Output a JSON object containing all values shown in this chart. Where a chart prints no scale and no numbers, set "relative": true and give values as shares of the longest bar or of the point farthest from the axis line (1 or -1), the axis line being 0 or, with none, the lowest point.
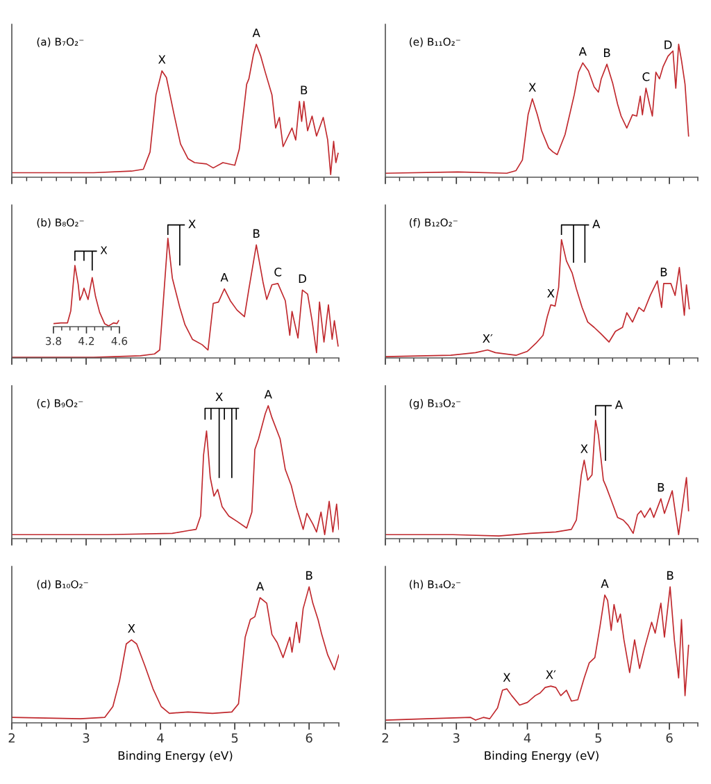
{
  "chart_data": [
    {
      "type": "line",
      "relative": true,
      "title": "(a) B₇O₂⁻",
      "xlim": [
        2,
        6.4
      ],
      "tick_labels": false,
      "xticks": [
        2,
        {
          "value": 2.2,
          "label": null
        },
        {
          "value": 2.4,
          "label": null
        },
        {
          "value": 2.6,
          "label": null
        },
        {
          "value": 2.8,
          "label": null
        },
        3,
        {
          "value": 3.2,
          "label": null
        },
        {
          "value": 3.4,
          "label": null
        },
        {
          "value": 3.6,
          "label": null
        },
        {
          "value": 3.8,
          "label": null
        },
        4,
        {
          "value": 4.2,
          "label": null
        },
        {
          "value": 4.4,
          "label": null
        },
        {
          "value": 4.6,
          "label": null
        },
        {
          "value": 4.8,
          "label": null
        },
        5,
        {
          "value": 5.2,
          "label": null
        },
        {
          "value": 5.4,
          "label": null
        },
        {
          "value": 5.6,
          "label": null
        },
        {
          "value": 5.8,
          "label": null
        },
        6,
        {
          "value": 6.2,
          "label": null
        },
        {
          "value": 6.4,
          "label": null
        }
      ],
      "series": [
        {
          "color": "#c0282d",
          "x": [
            2.0,
            3.1,
            3.61,
            3.77,
            3.86,
            3.94,
            4.02,
            4.08,
            4.18,
            4.27,
            4.37,
            4.46,
            4.62,
            4.71,
            4.84,
            5.0,
            5.06,
            5.16,
            5.19,
            5.25,
            5.29,
            5.35,
            5.41,
            5.5,
            5.55,
            5.6,
            5.65,
            5.77,
            5.82,
            5.87,
            5.9,
            5.93,
            5.98,
            6.04,
            6.1,
            6.19,
            6.25,
            6.29,
            6.33,
            6.36,
            6.39
          ],
          "values": [
            0.034,
            0.034,
            0.046,
            0.06,
            0.19,
            0.62,
            0.8,
            0.75,
            0.48,
            0.25,
            0.14,
            0.11,
            0.1,
            0.07,
            0.11,
            0.09,
            0.21,
            0.7,
            0.74,
            0.92,
            1.0,
            0.91,
            0.79,
            0.62,
            0.37,
            0.45,
            0.23,
            0.37,
            0.28,
            0.57,
            0.42,
            0.57,
            0.35,
            0.46,
            0.31,
            0.45,
            0.28,
            0.02,
            0.27,
            0.11,
            0.18
          ]
        }
      ],
      "annotations": [
        {
          "text": "X",
          "x": 4.02,
          "y": 0.8
        },
        {
          "text": "A",
          "x": 5.29,
          "y": 1.0
        },
        {
          "text": "B",
          "x": 5.93,
          "y": 0.57
        }
      ]
    },
    {
      "type": "line",
      "relative": true,
      "title": "(b) B₈O₂⁻",
      "xlim": [
        2,
        6.4
      ],
      "tick_labels": false,
      "xticks": [
        2,
        {
          "value": 2.2,
          "label": null
        },
        {
          "value": 2.4,
          "label": null
        },
        {
          "value": 2.6,
          "label": null
        },
        {
          "value": 2.8,
          "label": null
        },
        3,
        {
          "value": 3.2,
          "label": null
        },
        {
          "value": 3.4,
          "label": null
        },
        {
          "value": 3.6,
          "label": null
        },
        {
          "value": 3.8,
          "label": null
        },
        4,
        {
          "value": 4.2,
          "label": null
        },
        {
          "value": 4.4,
          "label": null
        },
        {
          "value": 4.6,
          "label": null
        },
        {
          "value": 4.8,
          "label": null
        },
        5,
        {
          "value": 5.2,
          "label": null
        },
        {
          "value": 5.4,
          "label": null
        },
        {
          "value": 5.6,
          "label": null
        },
        {
          "value": 5.8,
          "label": null
        },
        6,
        {
          "value": 6.2,
          "label": null
        },
        {
          "value": 6.4,
          "label": null
        }
      ],
      "series": [
        {
          "color": "#c0282d",
          "x": [
            2.0,
            3.1,
            3.73,
            3.92,
            3.99,
            4.03,
            4.1,
            4.16,
            4.26,
            4.33,
            4.43,
            4.56,
            4.64,
            4.71,
            4.78,
            4.86,
            4.94,
            5.03,
            5.13,
            5.19,
            5.29,
            5.38,
            5.43,
            5.5,
            5.58,
            5.68,
            5.74,
            5.77,
            5.85,
            5.91,
            5.98,
            6.04,
            6.1,
            6.14,
            6.2,
            6.26,
            6.31,
            6.34,
            6.39
          ],
          "values": [
            0.005,
            0.005,
            0.016,
            0.03,
            0.06,
            0.36,
            0.9,
            0.6,
            0.38,
            0.25,
            0.14,
            0.1,
            0.06,
            0.41,
            0.42,
            0.52,
            0.43,
            0.36,
            0.31,
            0.52,
            0.85,
            0.57,
            0.44,
            0.55,
            0.56,
            0.43,
            0.17,
            0.35,
            0.15,
            0.51,
            0.48,
            0.28,
            0.04,
            0.42,
            0.12,
            0.4,
            0.14,
            0.28,
            0.09
          ]
        },
        {
          "color": "#000000",
          "x": [
            4.1,
            4.1,
            4.32,
            null,
            4.26,
            4.26
          ],
          "values": [
            0.93,
            1.0,
            1.0,
            null,
            1.0,
            0.7
          ]
        }
      ],
      "annotations": [
        {
          "text": "X",
          "x": 4.32,
          "y": 1.0
        },
        {
          "text": "A",
          "x": 4.86,
          "y": 0.52
        },
        {
          "text": "B",
          "x": 5.29,
          "y": 0.85
        },
        {
          "text": "C",
          "x": 5.58,
          "y": 0.56
        },
        {
          "text": "D",
          "x": 5.91,
          "y": 0.51
        }
      ]
    },
    {
      "type": "line",
      "relative": true,
      "xlim": [
        3.8,
        4.6
      ],
      "xticks": [
        3.8,
        {
          "value": 3.9,
          "label": null
        },
        {
          "value": 4.0,
          "label": null
        },
        {
          "value": 4.1,
          "label": null
        },
        4.2,
        {
          "value": 4.3,
          "label": null
        },
        {
          "value": 4.4,
          "label": null
        },
        {
          "value": 4.5,
          "label": null
        },
        4.6
      ],
      "series": [
        {
          "color": "#c0282d",
          "x": [
            3.8,
            3.89,
            3.97,
            4.01,
            4.06,
            4.1,
            4.12,
            4.15,
            4.17,
            4.22,
            4.27,
            4.31,
            4.36,
            4.42,
            4.47,
            4.53,
            4.57,
            4.59
          ],
          "values": [
            0.04,
            0.05,
            0.05,
            0.21,
            0.81,
            0.56,
            0.35,
            0.43,
            0.51,
            0.36,
            0.65,
            0.4,
            0.19,
            0.04,
            0.01,
            0.05,
            0.04,
            0.08
          ]
        },
        {
          "color": "#000000",
          "x": [
            4.06,
            4.06,
            4.32,
            null,
            4.17,
            4.17,
            null,
            4.27,
            4.27
          ],
          "values": [
            0.88,
            1.0,
            1.0,
            null,
            0.88,
            1.0,
            null,
            1.0,
            0.75
          ]
        }
      ],
      "annotations": [
        {
          "text": "X",
          "x": 4.32,
          "y": 1.0
        }
      ]
    },
    {
      "type": "line",
      "relative": true,
      "title": "(c) B₉O₂⁻",
      "xlim": [
        2,
        6.4
      ],
      "tick_labels": false,
      "xticks": [
        2,
        {
          "value": 2.2,
          "label": null
        },
        {
          "value": 2.4,
          "label": null
        },
        {
          "value": 2.6,
          "label": null
        },
        {
          "value": 2.8,
          "label": null
        },
        3,
        {
          "value": 3.2,
          "label": null
        },
        {
          "value": 3.4,
          "label": null
        },
        {
          "value": 3.6,
          "label": null
        },
        {
          "value": 3.8,
          "label": null
        },
        4,
        {
          "value": 4.2,
          "label": null
        },
        {
          "value": 4.4,
          "label": null
        },
        {
          "value": 4.6,
          "label": null
        },
        {
          "value": 4.8,
          "label": null
        },
        5,
        {
          "value": 5.2,
          "label": null
        },
        {
          "value": 5.4,
          "label": null
        },
        {
          "value": 5.6,
          "label": null
        },
        {
          "value": 5.8,
          "label": null
        },
        6,
        {
          "value": 6.2,
          "label": null
        },
        {
          "value": 6.4,
          "label": null
        }
      ],
      "series": [
        {
          "color": "#c0282d",
          "x": [
            2.0,
            3.28,
            4.16,
            4.37,
            4.48,
            4.54,
            4.58,
            4.62,
            4.67,
            4.72,
            4.77,
            4.83,
            4.92,
            5.03,
            5.16,
            5.23,
            5.27,
            5.32,
            5.41,
            5.45,
            5.5,
            5.61,
            5.68,
            5.76,
            5.83,
            5.92,
            5.97,
            6.05,
            6.1,
            6.16,
            6.21,
            6.27,
            6.32,
            6.37,
            6.4
          ],
          "values": [
            0.03,
            0.03,
            0.04,
            0.06,
            0.07,
            0.17,
            0.63,
            0.81,
            0.46,
            0.32,
            0.37,
            0.24,
            0.17,
            0.13,
            0.08,
            0.2,
            0.67,
            0.75,
            0.94,
            1.0,
            0.91,
            0.75,
            0.52,
            0.4,
            0.24,
            0.07,
            0.19,
            0.11,
            0.05,
            0.2,
            0.03,
            0.28,
            0.05,
            0.26,
            0.07
          ]
        },
        {
          "color": "#000000",
          "x": [
            4.6,
            4.6,
            5.05,
            null,
            4.68,
            4.68,
            null,
            4.79,
            4.79,
            null,
            4.86,
            4.86,
            null,
            4.96,
            4.96,
            null,
            5.02,
            5.02
          ],
          "values": [
            0.9,
            0.98,
            0.98,
            null,
            0.98,
            0.9,
            null,
            0.98,
            0.46,
            null,
            0.98,
            0.9,
            null,
            0.98,
            0.46,
            null,
            0.98,
            0.9
          ]
        }
      ],
      "annotations": [
        {
          "text": "X",
          "x": 4.79,
          "y": 0.98
        },
        {
          "text": "A",
          "x": 5.45,
          "y": 1.0
        }
      ]
    },
    {
      "type": "line",
      "relative": true,
      "title": "(d) B₁₀O₂⁻",
      "xlabel": "Binding Energy (eV)",
      "xlim": [
        2,
        6.4
      ],
      "tick_labels": "x",
      "xticks": [
        2,
        {
          "value": 2.2,
          "label": null
        },
        {
          "value": 2.4,
          "label": null
        },
        {
          "value": 2.6,
          "label": null
        },
        {
          "value": 2.8,
          "label": null
        },
        3,
        {
          "value": 3.2,
          "label": null
        },
        {
          "value": 3.4,
          "label": null
        },
        {
          "value": 3.6,
          "label": null
        },
        {
          "value": 3.8,
          "label": null
        },
        4,
        {
          "value": 4.2,
          "label": null
        },
        {
          "value": 4.4,
          "label": null
        },
        {
          "value": 4.6,
          "label": null
        },
        {
          "value": 4.8,
          "label": null
        },
        5,
        {
          "value": 5.2,
          "label": null
        },
        {
          "value": 5.4,
          "label": null
        },
        {
          "value": 5.6,
          "label": null
        },
        {
          "value": 5.8,
          "label": null
        },
        6,
        {
          "value": 6.2,
          "label": null
        },
        {
          "value": 6.4,
          "label": null
        }
      ],
      "series": [
        {
          "color": "#c0282d",
          "x": [
            2.0,
            2.92,
            3.25,
            3.36,
            3.45,
            3.54,
            3.61,
            3.68,
            3.79,
            3.9,
            4.01,
            4.12,
            4.37,
            4.7,
            4.96,
            5.05,
            5.14,
            5.21,
            5.27,
            5.34,
            5.43,
            5.5,
            5.57,
            5.65,
            5.74,
            5.77,
            5.83,
            5.87,
            5.92,
            6.0,
            6.05,
            6.12,
            6.17,
            6.25,
            6.34,
            6.4
          ],
          "values": [
            0.04,
            0.03,
            0.04,
            0.12,
            0.31,
            0.58,
            0.61,
            0.58,
            0.42,
            0.25,
            0.12,
            0.07,
            0.08,
            0.07,
            0.08,
            0.14,
            0.63,
            0.76,
            0.78,
            0.92,
            0.88,
            0.65,
            0.59,
            0.48,
            0.63,
            0.52,
            0.74,
            0.59,
            0.84,
            1.0,
            0.88,
            0.76,
            0.65,
            0.5,
            0.39,
            0.5
          ]
        }
      ],
      "annotations": [
        {
          "text": "X",
          "x": 3.61,
          "y": 0.61
        },
        {
          "text": "A",
          "x": 5.34,
          "y": 0.92
        },
        {
          "text": "B",
          "x": 6.0,
          "y": 1.0
        }
      ]
    },
    {
      "type": "line",
      "relative": true,
      "title": "(e) B₁₁O₂⁻",
      "xlim": [
        2,
        6.4
      ],
      "tick_labels": false,
      "xticks": [
        2,
        {
          "value": 2.2,
          "label": null
        },
        {
          "value": 2.4,
          "label": null
        },
        {
          "value": 2.6,
          "label": null
        },
        {
          "value": 2.8,
          "label": null
        },
        3,
        {
          "value": 3.2,
          "label": null
        },
        {
          "value": 3.4,
          "label": null
        },
        {
          "value": 3.6,
          "label": null
        },
        {
          "value": 3.8,
          "label": null
        },
        4,
        {
          "value": 4.2,
          "label": null
        },
        {
          "value": 4.4,
          "label": null
        },
        {
          "value": 4.6,
          "label": null
        },
        {
          "value": 4.8,
          "label": null
        },
        5,
        {
          "value": 5.2,
          "label": null
        },
        {
          "value": 5.4,
          "label": null
        },
        {
          "value": 5.6,
          "label": null
        },
        {
          "value": 5.8,
          "label": null
        },
        6,
        {
          "value": 6.2,
          "label": null
        },
        {
          "value": 6.4,
          "label": null
        }
      ],
      "series": [
        {
          "color": "#c0282d",
          "x": [
            2.0,
            3.02,
            3.71,
            3.84,
            3.93,
            4.01,
            4.07,
            4.14,
            4.2,
            4.3,
            4.36,
            4.42,
            4.53,
            4.66,
            4.72,
            4.78,
            4.86,
            4.94,
            5.0,
            5.04,
            5.12,
            5.2,
            5.27,
            5.32,
            5.4,
            5.48,
            5.54,
            5.59,
            5.62,
            5.67,
            5.72,
            5.76,
            5.81,
            5.86,
            5.91,
            5.98,
            6.05,
            6.09,
            6.13,
            6.17,
            6.22,
            6.27
          ],
          "values": [
            0.03,
            0.04,
            0.03,
            0.05,
            0.13,
            0.47,
            0.59,
            0.47,
            0.35,
            0.22,
            0.19,
            0.17,
            0.32,
            0.62,
            0.79,
            0.86,
            0.8,
            0.68,
            0.64,
            0.74,
            0.85,
            0.71,
            0.55,
            0.46,
            0.37,
            0.47,
            0.46,
            0.61,
            0.47,
            0.67,
            0.55,
            0.46,
            0.79,
            0.74,
            0.83,
            0.91,
            0.95,
            0.67,
            1.0,
            0.88,
            0.7,
            0.31
          ]
        }
      ],
      "annotations": [
        {
          "text": "X",
          "x": 4.07,
          "y": 0.59
        },
        {
          "text": "A",
          "x": 4.78,
          "y": 0.86
        },
        {
          "text": "B",
          "x": 5.12,
          "y": 0.85
        },
        {
          "text": "C",
          "x": 5.67,
          "y": 0.67
        },
        {
          "text": "D",
          "x": 5.98,
          "y": 0.91
        }
      ]
    },
    {
      "type": "line",
      "relative": true,
      "title": "(f) B₁₂O₂⁻",
      "xlim": [
        2,
        6.4
      ],
      "tick_labels": false,
      "xticks": [
        2,
        {
          "value": 2.2,
          "label": null
        },
        {
          "value": 2.4,
          "label": null
        },
        {
          "value": 2.6,
          "label": null
        },
        {
          "value": 2.8,
          "label": null
        },
        3,
        {
          "value": 3.2,
          "label": null
        },
        {
          "value": 3.4,
          "label": null
        },
        {
          "value": 3.6,
          "label": null
        },
        {
          "value": 3.8,
          "label": null
        },
        4,
        {
          "value": 4.2,
          "label": null
        },
        {
          "value": 4.4,
          "label": null
        },
        {
          "value": 4.6,
          "label": null
        },
        {
          "value": 4.8,
          "label": null
        },
        5,
        {
          "value": 5.2,
          "label": null
        },
        {
          "value": 5.4,
          "label": null
        },
        {
          "value": 5.6,
          "label": null
        },
        {
          "value": 5.8,
          "label": null
        },
        6,
        {
          "value": 6.2,
          "label": null
        },
        {
          "value": 6.4,
          "label": null
        }
      ],
      "series": [
        {
          "color": "#c0282d",
          "x": [
            2.0,
            2.92,
            3.27,
            3.44,
            3.55,
            3.84,
            4.0,
            4.12,
            4.22,
            4.28,
            4.33,
            4.39,
            4.44,
            4.48,
            4.55,
            4.63,
            4.69,
            4.77,
            4.85,
            4.94,
            5.04,
            5.15,
            5.24,
            5.34,
            5.4,
            5.48,
            5.57,
            5.64,
            5.73,
            5.83,
            5.89,
            5.92,
            6.02,
            6.08,
            6.14,
            6.21,
            6.24,
            6.28
          ],
          "values": [
            0.01,
            0.02,
            0.04,
            0.06,
            0.04,
            0.02,
            0.05,
            0.11,
            0.17,
            0.31,
            0.4,
            0.39,
            0.53,
            0.89,
            0.73,
            0.64,
            0.52,
            0.38,
            0.27,
            0.23,
            0.18,
            0.12,
            0.2,
            0.23,
            0.34,
            0.27,
            0.38,
            0.35,
            0.47,
            0.58,
            0.38,
            0.56,
            0.56,
            0.47,
            0.68,
            0.32,
            0.55,
            0.37
          ]
        },
        {
          "color": "#000000",
          "x": [
            4.48,
            4.48,
            4.86,
            null,
            4.65,
            4.65,
            null,
            4.81,
            4.81
          ],
          "values": [
            0.93,
            1.0,
            1.0,
            null,
            1.0,
            0.72,
            null,
            1.0,
            0.72
          ]
        }
      ],
      "annotations": [
        {
          "text": "A",
          "x": 4.86,
          "y": 1.0
        },
        {
          "text": "X",
          "x": 4.33,
          "y": 0.4
        },
        {
          "text": "X′",
          "x": 3.44,
          "y": 0.06
        },
        {
          "text": "B",
          "x": 5.92,
          "y": 0.56
        }
      ]
    },
    {
      "type": "line",
      "relative": true,
      "title": "(g) B₁₃O₂⁻",
      "xlim": [
        2,
        6.4
      ],
      "tick_labels": false,
      "xticks": [
        2,
        {
          "value": 2.2,
          "label": null
        },
        {
          "value": 2.4,
          "label": null
        },
        {
          "value": 2.6,
          "label": null
        },
        {
          "value": 2.8,
          "label": null
        },
        3,
        {
          "value": 3.2,
          "label": null
        },
        {
          "value": 3.4,
          "label": null
        },
        {
          "value": 3.6,
          "label": null
        },
        {
          "value": 3.8,
          "label": null
        },
        4,
        {
          "value": 4.2,
          "label": null
        },
        {
          "value": 4.4,
          "label": null
        },
        {
          "value": 4.6,
          "label": null
        },
        {
          "value": 4.8,
          "label": null
        },
        5,
        {
          "value": 5.2,
          "label": null
        },
        {
          "value": 5.4,
          "label": null
        },
        {
          "value": 5.6,
          "label": null
        },
        {
          "value": 5.8,
          "label": null
        },
        6,
        {
          "value": 6.2,
          "label": null
        },
        {
          "value": 6.4,
          "label": null
        }
      ],
      "series": [
        {
          "color": "#c0282d",
          "x": [
            2.0,
            2.95,
            3.6,
            4.04,
            4.4,
            4.62,
            4.69,
            4.76,
            4.8,
            4.85,
            4.91,
            4.96,
            5.0,
            5.07,
            5.11,
            5.18,
            5.27,
            5.35,
            5.42,
            5.49,
            5.55,
            5.6,
            5.65,
            5.73,
            5.78,
            5.88,
            5.93,
            6.04,
            6.08,
            6.13,
            6.18,
            6.24,
            6.27
          ],
          "values": [
            0.03,
            0.03,
            0.02,
            0.04,
            0.05,
            0.07,
            0.14,
            0.48,
            0.59,
            0.44,
            0.48,
            0.89,
            0.78,
            0.44,
            0.39,
            0.29,
            0.16,
            0.14,
            0.1,
            0.04,
            0.18,
            0.21,
            0.16,
            0.23,
            0.16,
            0.3,
            0.19,
            0.36,
            0.21,
            0.03,
            0.23,
            0.46,
            0.21
          ]
        },
        {
          "color": "#000000",
          "x": [
            4.96,
            4.96,
            5.18,
            null,
            5.1,
            5.1
          ],
          "values": [
            0.93,
            1.0,
            1.0,
            null,
            1.0,
            0.59
          ]
        }
      ],
      "annotations": [
        {
          "text": "A",
          "x": 5.18,
          "y": 1.0
        },
        {
          "text": "X",
          "x": 4.8,
          "y": 0.59
        },
        {
          "text": "B",
          "x": 5.88,
          "y": 0.3
        }
      ]
    },
    {
      "type": "line",
      "relative": true,
      "title": "(h) B₁₄O₂⁻",
      "xlabel": "Binding Energy (eV)",
      "xlim": [
        2,
        6.4
      ],
      "tick_labels": "x",
      "xticks": [
        2,
        {
          "value": 2.2,
          "label": null
        },
        {
          "value": 2.4,
          "label": null
        },
        {
          "value": 2.6,
          "label": null
        },
        {
          "value": 2.8,
          "label": null
        },
        3,
        {
          "value": 3.2,
          "label": null
        },
        {
          "value": 3.4,
          "label": null
        },
        {
          "value": 3.6,
          "label": null
        },
        {
          "value": 3.8,
          "label": null
        },
        4,
        {
          "value": 4.2,
          "label": null
        },
        {
          "value": 4.4,
          "label": null
        },
        {
          "value": 4.6,
          "label": null
        },
        {
          "value": 4.8,
          "label": null
        },
        5,
        {
          "value": 5.2,
          "label": null
        },
        {
          "value": 5.4,
          "label": null
        },
        {
          "value": 5.6,
          "label": null
        },
        {
          "value": 5.8,
          "label": null
        },
        6,
        {
          "value": 6.2,
          "label": null
        },
        {
          "value": 6.4,
          "label": null
        }
      ],
      "series": [
        {
          "color": "#c0282d",
          "x": [
            2.0,
            2.58,
            3.2,
            3.27,
            3.38,
            3.47,
            3.58,
            3.65,
            3.71,
            3.78,
            3.89,
            4.0,
            4.11,
            4.18,
            4.25,
            4.33,
            4.4,
            4.47,
            4.55,
            4.62,
            4.71,
            4.8,
            4.87,
            4.95,
            5.02,
            5.09,
            5.13,
            5.18,
            5.22,
            5.27,
            5.31,
            5.36,
            5.44,
            5.51,
            5.58,
            5.65,
            5.75,
            5.8,
            5.88,
            5.93,
            6.01,
            6.07,
            6.13,
            6.17,
            6.22,
            6.27
          ],
          "values": [
            0.02,
            0.03,
            0.04,
            0.02,
            0.04,
            0.03,
            0.11,
            0.24,
            0.25,
            0.2,
            0.13,
            0.15,
            0.2,
            0.22,
            0.26,
            0.27,
            0.26,
            0.2,
            0.24,
            0.16,
            0.17,
            0.33,
            0.44,
            0.48,
            0.7,
            0.94,
            0.9,
            0.68,
            0.87,
            0.74,
            0.8,
            0.61,
            0.37,
            0.61,
            0.4,
            0.55,
            0.74,
            0.66,
            0.88,
            0.63,
            1.0,
            0.61,
            0.33,
            0.76,
            0.2,
            0.57
          ]
        }
      ],
      "annotations": [
        {
          "text": "A",
          "x": 5.09,
          "y": 0.94
        },
        {
          "text": "B",
          "x": 6.01,
          "y": 1.0
        },
        {
          "text": "X",
          "x": 3.71,
          "y": 0.25
        },
        {
          "text": "X′",
          "x": 4.33,
          "y": 0.27
        }
      ]
    }
  ]
}
